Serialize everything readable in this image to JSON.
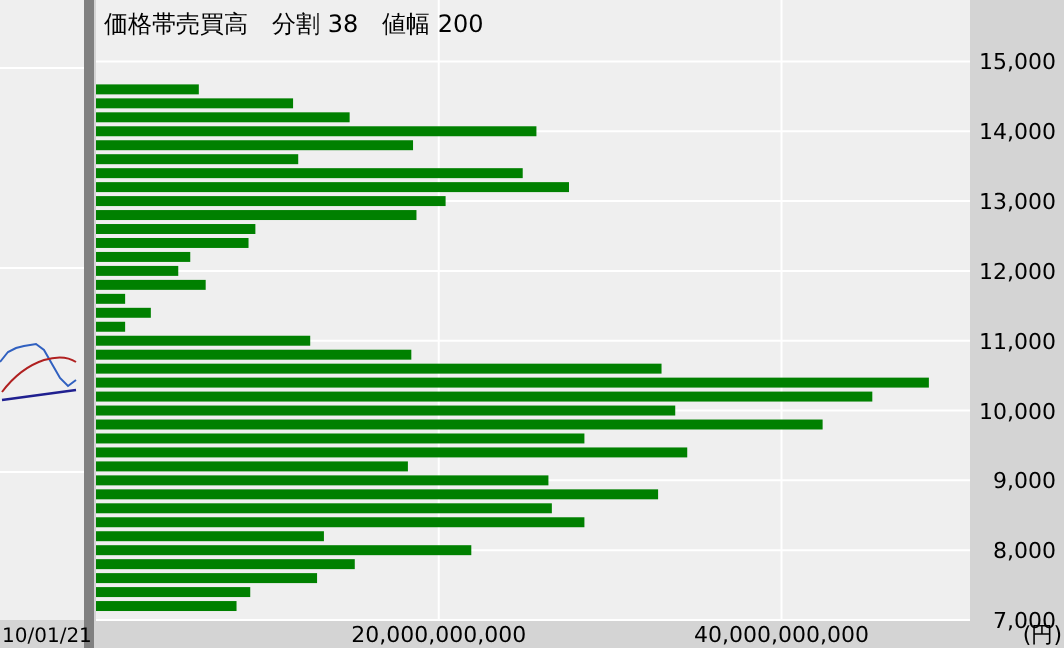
{
  "chart_data": {
    "type": "histogram",
    "orientation": "horizontal",
    "title": "価格帯売買高　分割 38　値幅 200",
    "xlabel": "(円)",
    "annotations": [
      "10/01/21"
    ],
    "bins": [
      7100,
      7300,
      7500,
      7700,
      7900,
      8100,
      8300,
      8500,
      8700,
      8900,
      9100,
      9300,
      9500,
      9700,
      9900,
      10100,
      10300,
      10500,
      10700,
      10900,
      11100,
      11300,
      11500,
      11700,
      11900,
      12100,
      12300,
      12500,
      12700,
      12900,
      13100,
      13300,
      13500,
      13700,
      13900,
      14100,
      14300,
      14500,
      14700
    ],
    "values": [
      8200000000,
      9000000000,
      12900000000,
      15100000000,
      21900000000,
      13300000000,
      28500000000,
      26600000000,
      32800000000,
      26400000000,
      18200000000,
      34500000000,
      28500000000,
      42400000000,
      33800000000,
      45300000000,
      48600000000,
      33000000000,
      18400000000,
      12500000000,
      1700000000,
      3200000000,
      1700000000,
      6400000000,
      4800000000,
      5500000000,
      8900000000,
      9300000000,
      18700000000,
      20400000000,
      27600000000,
      24900000000,
      11800000000,
      18500000000,
      25700000000,
      14800000000,
      11500000000,
      6000000000
    ],
    "color": "#008000",
    "xlim": [
      0,
      51000000000
    ],
    "xticks": [
      {
        "value": 20000000000,
        "label": "20,000,000,000"
      },
      {
        "value": 40000000000,
        "label": "40,000,000,000"
      }
    ],
    "ylim": [
      7000,
      15880
    ],
    "yticks": [
      {
        "value": 7000,
        "label": "7,000"
      },
      {
        "value": 8000,
        "label": "8,000"
      },
      {
        "value": 9000,
        "label": "9,000"
      },
      {
        "value": 10000,
        "label": "10,000"
      },
      {
        "value": 11000,
        "label": "11,000"
      },
      {
        "value": 12000,
        "label": "12,000"
      },
      {
        "value": 13000,
        "label": "13,000"
      },
      {
        "value": 14000,
        "label": "14,000"
      },
      {
        "value": 15000,
        "label": "15,000"
      }
    ],
    "grid": true
  }
}
